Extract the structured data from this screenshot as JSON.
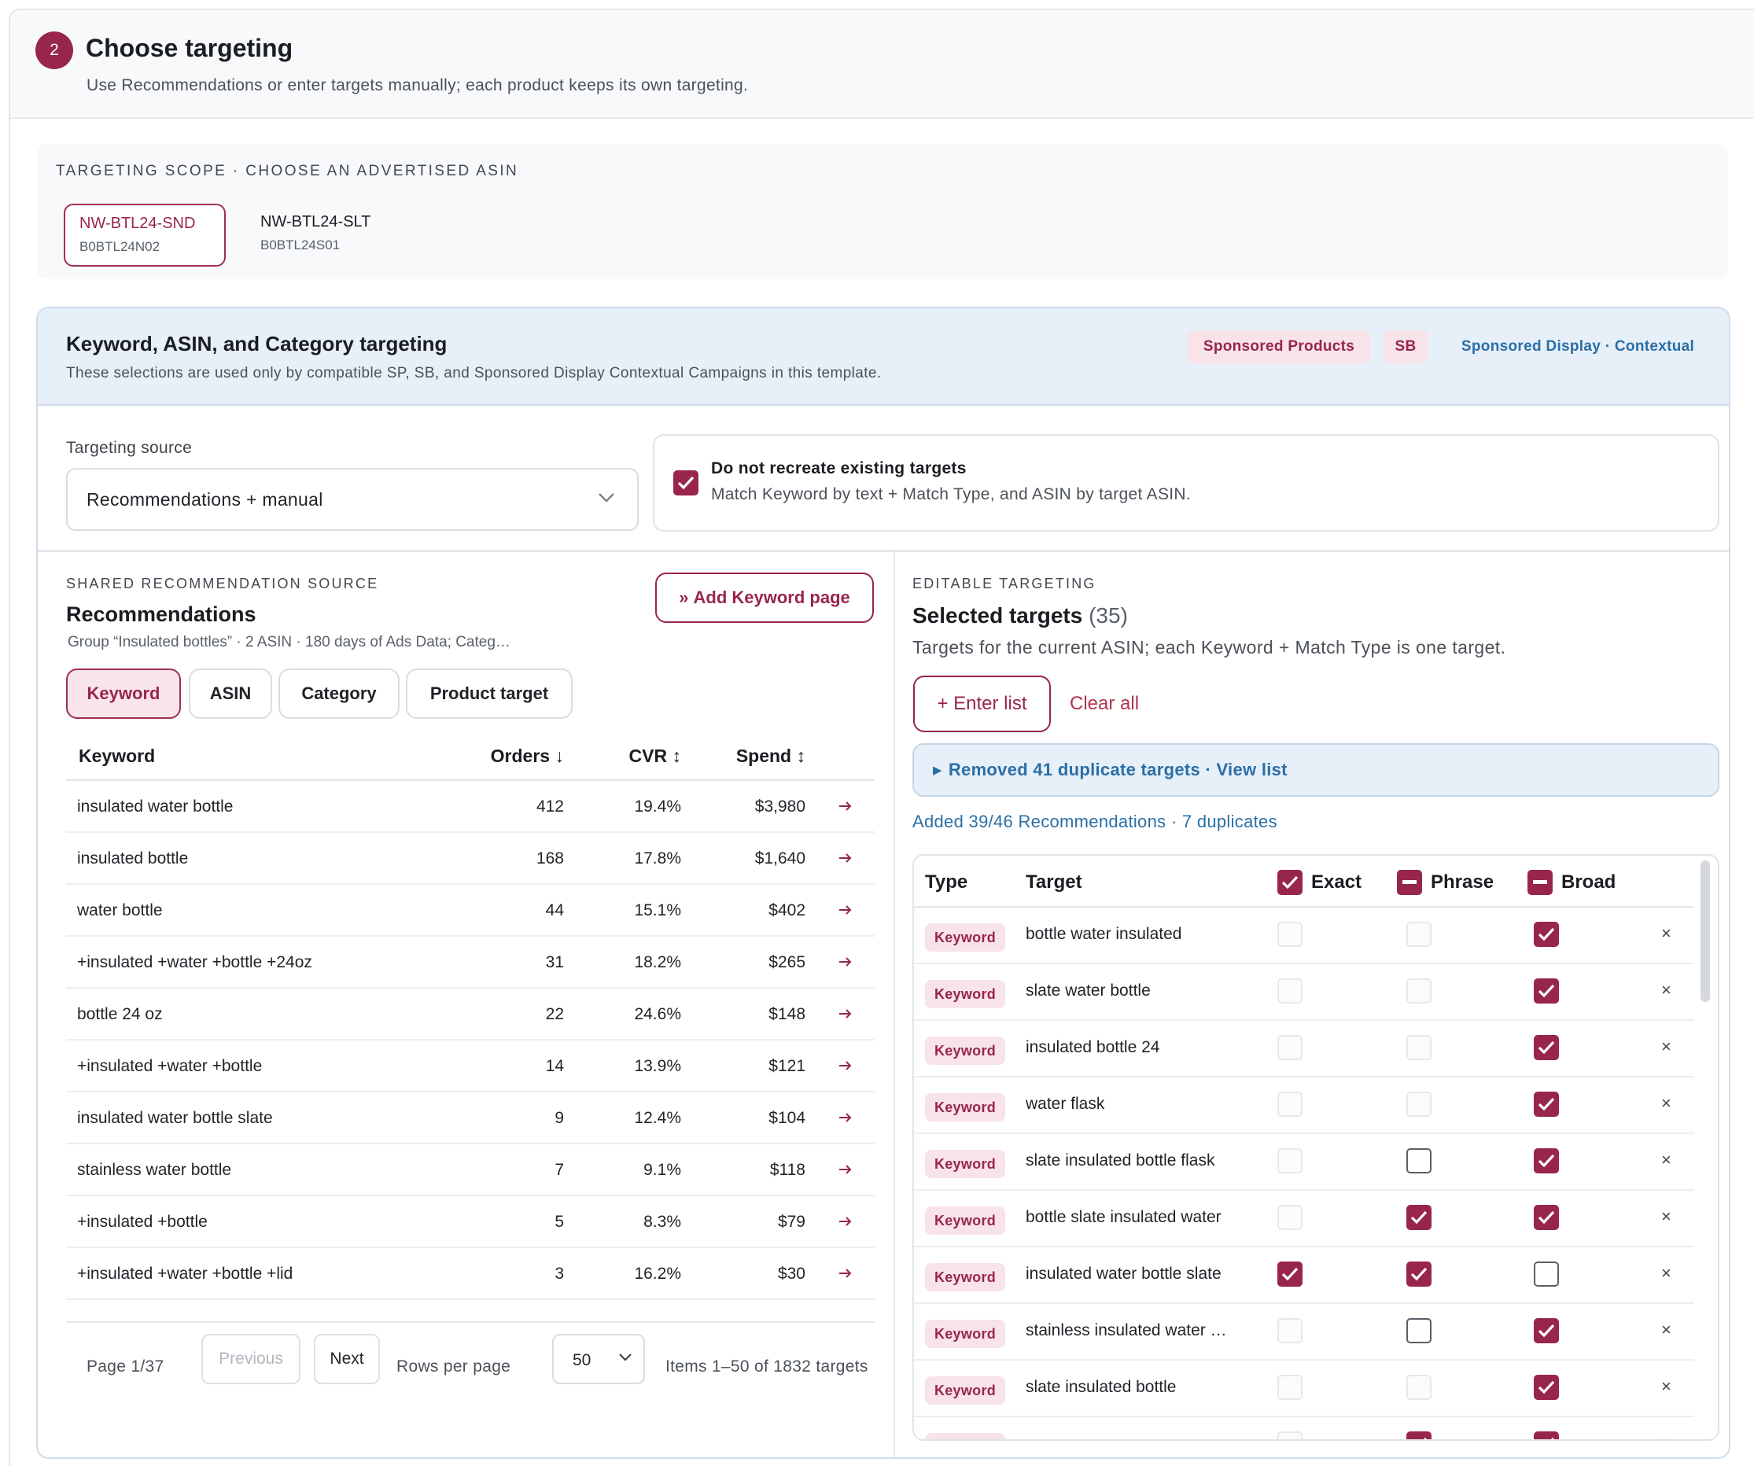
{
  "step": {
    "number": "2",
    "title": "Choose targeting",
    "subtitle": "Use Recommendations or enter targets manually; each product keeps its own targeting."
  },
  "scope": {
    "label": "TARGETING SCOPE · CHOOSE AN ADVERTISED ASIN",
    "asins": [
      {
        "name": "NW-BTL24-SND",
        "code": "B0BTL24N02",
        "active": true
      },
      {
        "name": "NW-BTL24-SLT",
        "code": "B0BTL24S01",
        "active": false
      }
    ]
  },
  "card": {
    "title": "Keyword, ASIN, and Category targeting",
    "subtitle": "These selections are used only by compatible SP, SB, and Sponsored Display Contextual Campaigns in this template.",
    "pills": [
      "Sponsored Products",
      "SB",
      "Sponsored Display · Contextual"
    ]
  },
  "source": {
    "label": "Targeting source",
    "value": "Recommendations + manual",
    "dnr_title": "Do not recreate existing targets",
    "dnr_sub": "Match Keyword by text + Match Type, and ASIN by target ASIN.",
    "dnr_checked": true
  },
  "recommendations": {
    "section_label": "SHARED RECOMMENDATION SOURCE",
    "title": "Recommendations",
    "subtitle": "Group “Insulated bottles” · 2 ASIN · 180 days of Ads Data; Categ…",
    "add_button": "Add Keyword page",
    "tabs": [
      "Keyword",
      "ASIN",
      "Category",
      "Product target"
    ],
    "active_tab": 0,
    "columns": {
      "keyword": "Keyword",
      "orders": "Orders ↓",
      "cvr": "CVR ↕",
      "spend": "Spend ↕"
    },
    "rows": [
      {
        "keyword": "insulated water bottle",
        "orders": "412",
        "cvr": "19.4%",
        "spend": "$3,980"
      },
      {
        "keyword": "insulated bottle",
        "orders": "168",
        "cvr": "17.8%",
        "spend": "$1,640"
      },
      {
        "keyword": "water bottle",
        "orders": "44",
        "cvr": "15.1%",
        "spend": "$402"
      },
      {
        "keyword": "+insulated +water +bottle +24oz",
        "orders": "31",
        "cvr": "18.2%",
        "spend": "$265"
      },
      {
        "keyword": "bottle 24 oz",
        "orders": "22",
        "cvr": "24.6%",
        "spend": "$148"
      },
      {
        "keyword": "+insulated +water +bottle",
        "orders": "14",
        "cvr": "13.9%",
        "spend": "$121"
      },
      {
        "keyword": "insulated water bottle slate",
        "orders": "9",
        "cvr": "12.4%",
        "spend": "$104"
      },
      {
        "keyword": "stainless water bottle",
        "orders": "7",
        "cvr": "9.1%",
        "spend": "$118"
      },
      {
        "keyword": "+insulated +bottle",
        "orders": "5",
        "cvr": "8.3%",
        "spend": "$79"
      },
      {
        "keyword": "+insulated +water +bottle +lid",
        "orders": "3",
        "cvr": "16.2%",
        "spend": "$30"
      }
    ],
    "pager": {
      "page": "Page 1/37",
      "previous": "Previous",
      "next": "Next",
      "rows_label": "Rows per page",
      "rows_value": "50",
      "items": "Items 1–50 of 1832 targets"
    }
  },
  "selected": {
    "section_label": "EDITABLE TARGETING",
    "title": "Selected targets",
    "count": "(35)",
    "subtitle": "Targets for the current ASIN; each Keyword + Match Type is one target.",
    "enter_list": "+ Enter list",
    "clear_all": "Clear all",
    "removed_bar": "Removed 41 duplicate targets · View list",
    "added_link": "Added 39/46 Recommendations · 7 duplicates",
    "columns": {
      "type": "Type",
      "target": "Target",
      "exact": "Exact",
      "phrase": "Phrase",
      "broad": "Broad"
    },
    "header_states": {
      "exact": "checked",
      "phrase": "indeterminate",
      "broad": "indeterminate"
    },
    "rows": [
      {
        "type": "Keyword",
        "target": "bottle water insulated",
        "exact": "dis",
        "phrase": "dis",
        "broad": "on"
      },
      {
        "type": "Keyword",
        "target": "slate water bottle",
        "exact": "dis",
        "phrase": "dis",
        "broad": "on"
      },
      {
        "type": "Keyword",
        "target": "insulated bottle 24",
        "exact": "dis",
        "phrase": "dis",
        "broad": "on"
      },
      {
        "type": "Keyword",
        "target": "water flask",
        "exact": "dis",
        "phrase": "dis",
        "broad": "on"
      },
      {
        "type": "Keyword",
        "target": "slate insulated bottle flask",
        "exact": "dis",
        "phrase": "off",
        "broad": "on"
      },
      {
        "type": "Keyword",
        "target": "bottle slate insulated water",
        "exact": "dis",
        "phrase": "on",
        "broad": "on"
      },
      {
        "type": "Keyword",
        "target": "insulated water bottle slate",
        "exact": "on",
        "phrase": "on",
        "broad": "off"
      },
      {
        "type": "Keyword",
        "target": "stainless insulated water …",
        "exact": "dis",
        "phrase": "off",
        "broad": "on"
      },
      {
        "type": "Keyword",
        "target": "slate insulated bottle",
        "exact": "dis",
        "phrase": "dis",
        "broad": "on"
      },
      {
        "type": "Keyword",
        "target": "",
        "exact": "dis",
        "phrase": "on",
        "broad": "on"
      }
    ]
  },
  "colors": {
    "accent": "#98264a",
    "link": "#2a6fa6",
    "header_bg": "#e7eff8"
  }
}
